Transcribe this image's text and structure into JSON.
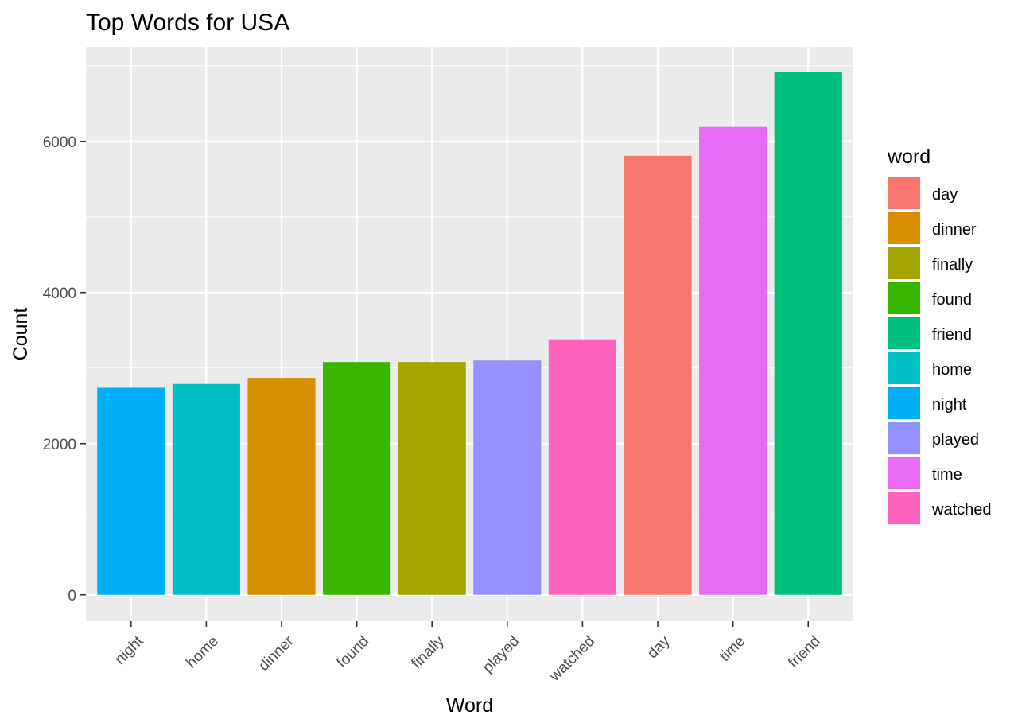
{
  "chart_data": {
    "type": "bar",
    "title": "Top Words for USA",
    "xlabel": "Word",
    "ylabel": "Count",
    "categories": [
      "night",
      "home",
      "dinner",
      "found",
      "finally",
      "played",
      "watched",
      "day",
      "time",
      "friend"
    ],
    "values": [
      2740,
      2790,
      2870,
      3080,
      3080,
      3100,
      3380,
      5810,
      6190,
      6920
    ],
    "ylim": [
      -350,
      7250
    ],
    "yticks": [
      0,
      2000,
      4000,
      6000
    ],
    "ytick_labels": [
      "0",
      "2000",
      "4000",
      "6000"
    ],
    "grid": true,
    "legend": {
      "title": "word",
      "placement": "right",
      "entries": [
        "day",
        "dinner",
        "finally",
        "found",
        "friend",
        "home",
        "night",
        "played",
        "time",
        "watched"
      ]
    },
    "colors": {
      "day": "#F8766D",
      "dinner": "#D89000",
      "finally": "#A3A500",
      "found": "#39B600",
      "friend": "#00BF7D",
      "home": "#00BFC4",
      "night": "#00B0F6",
      "played": "#9590FF",
      "time": "#E76BF3",
      "watched": "#FF62BC"
    },
    "panel_background": "#EBEBEB",
    "grid_color": "#FFFFFF"
  }
}
